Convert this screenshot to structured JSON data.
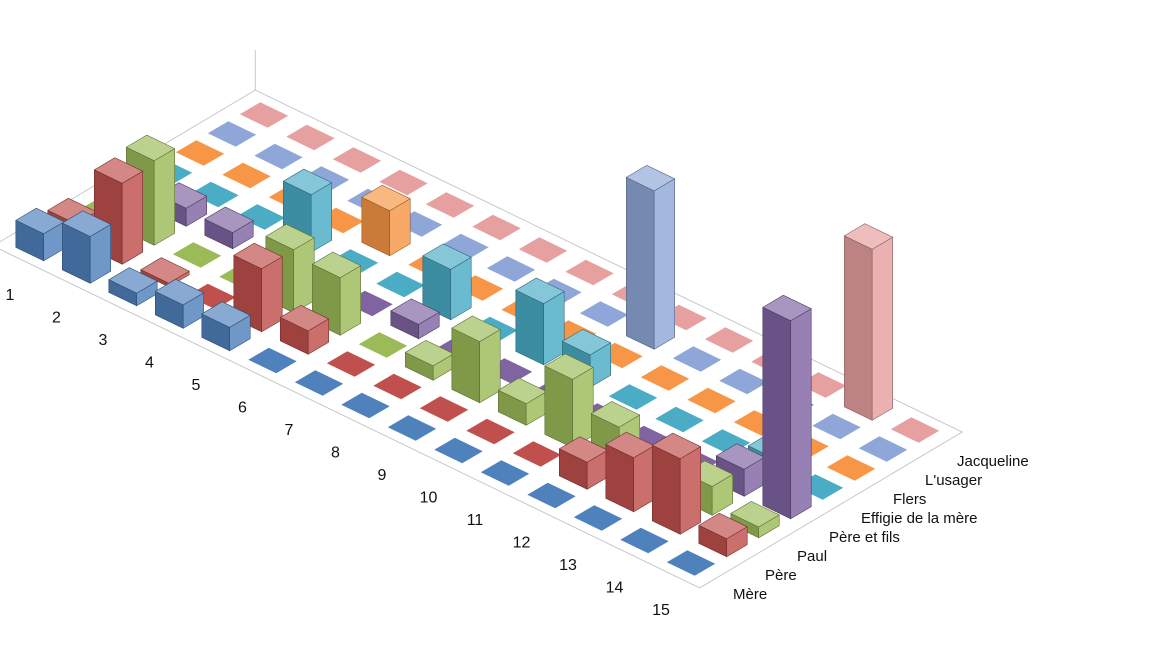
{
  "chart_data": {
    "type": "bar",
    "projection": "3d-column",
    "title": "",
    "xlabel": "",
    "ylabel": "",
    "zlabel": "",
    "grid": false,
    "legend": "none",
    "categories": [
      "1",
      "2",
      "3",
      "4",
      "5",
      "6",
      "7",
      "8",
      "9",
      "10",
      "11",
      "12",
      "13",
      "14",
      "15"
    ],
    "series": [
      {
        "name": "Mère",
        "color": "#4f81bd",
        "values": [
          1.5,
          2.6,
          0.7,
          1.3,
          1.3,
          0,
          0,
          0,
          0,
          0,
          0,
          0,
          0,
          0,
          0
        ]
      },
      {
        "name": "Père",
        "color": "#c0504d",
        "values": [
          1.0,
          4.5,
          0.2,
          0,
          3.5,
          1.3,
          0,
          0,
          0,
          0,
          0,
          1.5,
          3.0,
          4.2,
          1.0
        ]
      },
      {
        "name": "Paul",
        "color": "#9bbb59",
        "values": [
          0,
          4.7,
          0,
          0,
          3.5,
          3.2,
          0,
          0.8,
          3.4,
          1.2,
          3.8,
          2.4,
          1.4,
          1.6,
          0.6
        ]
      },
      {
        "name": "Père et fils",
        "color": "#8064a2",
        "values": [
          0,
          1.0,
          0.9,
          0,
          0,
          0,
          0.8,
          0,
          0,
          0,
          0,
          0,
          0,
          1.5,
          11.0
        ]
      },
      {
        "name": "Effigie de la mère",
        "color": "#4bacc6",
        "values": [
          0,
          0,
          0,
          3.2,
          0,
          0,
          2.8,
          0,
          3.4,
          1.8,
          0,
          0,
          0,
          1.0,
          0
        ]
      },
      {
        "name": "Flers",
        "color": "#f79646",
        "values": [
          0,
          0,
          0,
          0,
          2.5,
          0,
          0,
          0,
          0,
          0,
          0,
          0,
          0,
          0,
          0
        ]
      },
      {
        "name": "L'usager",
        "color": "#8fa7d8",
        "values": [
          0,
          0,
          0,
          0,
          0,
          0,
          0,
          0,
          0,
          8.8,
          0,
          0,
          0,
          0,
          0
        ]
      },
      {
        "name": "Jacqueline",
        "color": "#e6a0a0",
        "values": [
          0,
          0,
          0,
          0,
          0,
          0,
          0,
          0,
          0,
          0,
          0,
          0,
          0,
          9.5,
          0
        ]
      }
    ]
  }
}
